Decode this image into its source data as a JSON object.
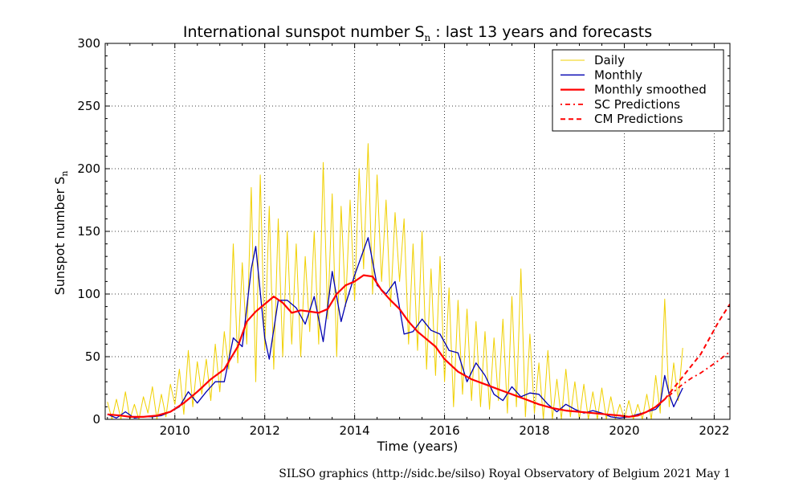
{
  "chart_data": {
    "type": "line",
    "title": {
      "main": "International sunspot number S",
      "sub": "n",
      "rest": " : last 13 years and forecasts"
    },
    "xlabel": "Time (years)",
    "ylabel": {
      "main": "Sunspot number S",
      "sub": "n"
    },
    "xlim": [
      2008.45,
      2022.35
    ],
    "ylim": [
      0,
      300
    ],
    "x_ticks": [
      2010,
      2012,
      2014,
      2016,
      2018,
      2020,
      2022
    ],
    "y_ticks": [
      0,
      50,
      100,
      150,
      200,
      250,
      300
    ],
    "grid": true,
    "legend_position": "top-right",
    "credit": "SILSO graphics (http://sidc.be/silso)  Royal Observatory of Belgium  2021 May 1",
    "colors": {
      "daily": "#f0d000",
      "monthly": "#0000b0",
      "smoothed": "#ff0000",
      "predictions": "#ff0000"
    },
    "series": [
      {
        "name": "Daily",
        "style": "thin-line",
        "color": "#f0d000",
        "x": [
          2008.5,
          2008.6,
          2008.7,
          2008.8,
          2008.9,
          2009.0,
          2009.1,
          2009.2,
          2009.3,
          2009.4,
          2009.5,
          2009.6,
          2009.7,
          2009.8,
          2009.9,
          2010.0,
          2010.1,
          2010.2,
          2010.3,
          2010.4,
          2010.5,
          2010.6,
          2010.7,
          2010.8,
          2010.9,
          2011.0,
          2011.1,
          2011.2,
          2011.3,
          2011.4,
          2011.5,
          2011.6,
          2011.7,
          2011.8,
          2011.9,
          2012.0,
          2012.1,
          2012.2,
          2012.3,
          2012.4,
          2012.5,
          2012.6,
          2012.7,
          2012.8,
          2012.9,
          2013.0,
          2013.1,
          2013.2,
          2013.3,
          2013.4,
          2013.5,
          2013.6,
          2013.7,
          2013.8,
          2013.9,
          2014.0,
          2014.1,
          2014.2,
          2014.3,
          2014.4,
          2014.5,
          2014.6,
          2014.7,
          2014.8,
          2014.9,
          2015.0,
          2015.1,
          2015.2,
          2015.3,
          2015.4,
          2015.5,
          2015.6,
          2015.7,
          2015.8,
          2015.9,
          2016.0,
          2016.1,
          2016.2,
          2016.3,
          2016.4,
          2016.5,
          2016.6,
          2016.7,
          2016.8,
          2016.9,
          2017.0,
          2017.1,
          2017.2,
          2017.3,
          2017.4,
          2017.5,
          2017.6,
          2017.7,
          2017.8,
          2017.9,
          2018.0,
          2018.1,
          2018.2,
          2018.3,
          2018.4,
          2018.5,
          2018.6,
          2018.7,
          2018.8,
          2018.9,
          2019.0,
          2019.1,
          2019.2,
          2019.3,
          2019.4,
          2019.5,
          2019.6,
          2019.7,
          2019.8,
          2019.9,
          2020.0,
          2020.1,
          2020.2,
          2020.3,
          2020.4,
          2020.5,
          2020.6,
          2020.7,
          2020.8,
          2020.9,
          2021.0,
          2021.1,
          2021.2,
          2021.3
        ],
        "values": [
          14,
          0,
          16,
          0,
          22,
          0,
          12,
          0,
          18,
          5,
          26,
          0,
          20,
          2,
          28,
          12,
          40,
          4,
          55,
          10,
          46,
          20,
          48,
          15,
          60,
          22,
          70,
          40,
          140,
          45,
          125,
          60,
          185,
          30,
          195,
          55,
          170,
          40,
          160,
          50,
          150,
          60,
          140,
          50,
          130,
          70,
          150,
          60,
          205,
          80,
          180,
          50,
          170,
          90,
          175,
          95,
          200,
          120,
          220,
          100,
          195,
          110,
          175,
          90,
          165,
          110,
          160,
          60,
          140,
          55,
          150,
          40,
          120,
          35,
          130,
          30,
          105,
          10,
          95,
          20,
          88,
          15,
          78,
          10,
          70,
          8,
          65,
          15,
          80,
          5,
          98,
          10,
          120,
          2,
          68,
          5,
          45,
          0,
          55,
          0,
          32,
          0,
          40,
          2,
          30,
          0,
          28,
          0,
          22,
          0,
          25,
          0,
          18,
          0,
          12,
          0,
          15,
          0,
          12,
          0,
          20,
          0,
          35,
          5,
          96,
          10,
          45,
          15,
          57
        ]
      },
      {
        "name": "Monthly",
        "style": "line",
        "color": "#0000b0",
        "x": [
          2008.5,
          2008.7,
          2008.9,
          2009.1,
          2009.3,
          2009.5,
          2009.7,
          2009.9,
          2010.1,
          2010.3,
          2010.5,
          2010.7,
          2010.9,
          2011.1,
          2011.3,
          2011.5,
          2011.7,
          2011.8,
          2012.0,
          2012.1,
          2012.3,
          2012.5,
          2012.7,
          2012.9,
          2013.1,
          2013.3,
          2013.5,
          2013.7,
          2013.8,
          2014.0,
          2014.1,
          2014.3,
          2014.5,
          2014.7,
          2014.9,
          2015.1,
          2015.3,
          2015.5,
          2015.7,
          2015.9,
          2016.1,
          2016.3,
          2016.5,
          2016.7,
          2016.9,
          2017.1,
          2017.3,
          2017.5,
          2017.7,
          2017.9,
          2018.1,
          2018.3,
          2018.5,
          2018.7,
          2018.9,
          2019.1,
          2019.3,
          2019.5,
          2019.7,
          2019.9,
          2020.1,
          2020.3,
          2020.5,
          2020.7,
          2020.8,
          2020.9,
          2021.0,
          2021.1,
          2021.3
        ],
        "values": [
          4,
          1,
          6,
          1,
          2,
          2,
          3,
          6,
          10,
          22,
          13,
          22,
          30,
          30,
          65,
          58,
          120,
          138,
          65,
          48,
          95,
          95,
          89,
          76,
          98,
          62,
          118,
          78,
          92,
          115,
          125,
          145,
          107,
          100,
          110,
          68,
          70,
          80,
          71,
          68,
          55,
          53,
          30,
          45,
          35,
          20,
          15,
          26,
          18,
          21,
          20,
          12,
          6,
          12,
          8,
          5,
          7,
          5,
          2,
          1,
          2,
          4,
          6,
          8,
          12,
          35,
          20,
          10,
          25
        ]
      },
      {
        "name": "Monthly smoothed",
        "style": "thick-line",
        "color": "#ff0000",
        "x": [
          2008.5,
          2008.8,
          2009.0,
          2009.3,
          2009.6,
          2009.9,
          2010.2,
          2010.5,
          2010.8,
          2011.1,
          2011.4,
          2011.6,
          2011.8,
          2012.0,
          2012.2,
          2012.4,
          2012.6,
          2012.8,
          2013.0,
          2013.2,
          2013.4,
          2013.6,
          2013.8,
          2014.0,
          2014.2,
          2014.4,
          2014.6,
          2014.8,
          2015.0,
          2015.2,
          2015.4,
          2015.6,
          2015.8,
          2016.0,
          2016.3,
          2016.6,
          2016.9,
          2017.2,
          2017.5,
          2017.8,
          2018.1,
          2018.4,
          2018.7,
          2019.0,
          2019.3,
          2019.6,
          2019.9,
          2020.1,
          2020.3,
          2020.5,
          2020.7,
          2020.9
        ],
        "values": [
          4,
          3,
          2,
          2,
          3,
          6,
          13,
          22,
          32,
          40,
          58,
          78,
          86,
          92,
          98,
          93,
          85,
          87,
          86,
          85,
          88,
          100,
          107,
          110,
          115,
          114,
          103,
          95,
          88,
          78,
          70,
          64,
          58,
          48,
          38,
          32,
          28,
          24,
          20,
          16,
          12,
          9,
          7,
          6,
          5,
          4,
          3,
          2,
          3,
          6,
          10,
          16
        ]
      },
      {
        "name": "SC Predictions",
        "style": "dash-dot",
        "color": "#ff0000",
        "x": [
          2020.9,
          2021.1,
          2021.3,
          2021.5,
          2021.7,
          2021.9,
          2022.1,
          2022.35
        ],
        "values": [
          16,
          22,
          28,
          33,
          37,
          42,
          47,
          54
        ]
      },
      {
        "name": "CM Predictions",
        "style": "dashed",
        "color": "#ff0000",
        "x": [
          2020.9,
          2021.1,
          2021.3,
          2021.5,
          2021.7,
          2021.9,
          2022.1,
          2022.35
        ],
        "values": [
          16,
          25,
          34,
          43,
          52,
          65,
          78,
          92
        ]
      }
    ]
  }
}
